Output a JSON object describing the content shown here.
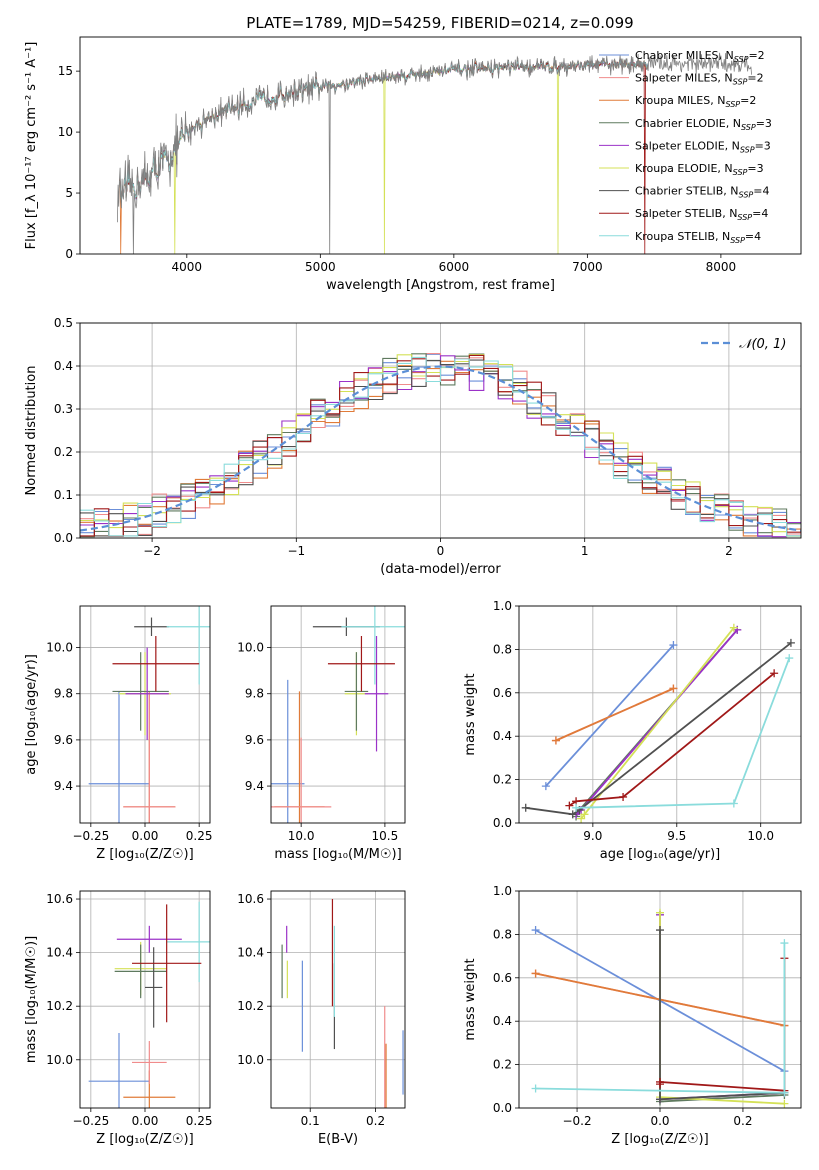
{
  "figure": {
    "title": "PLATE=1789, MJD=54259, FIBERID=0214, z=0.099"
  },
  "colors": {
    "Chabrier MILES": "#6b8fd9",
    "Salpeter MILES": "#f08c8c",
    "Kroupa MILES": "#e07b39",
    "Chabrier ELODIE": "#5f7a5f",
    "Salpeter ELODIE": "#9b32c8",
    "Kroupa ELODIE": "#d4e157",
    "Chabrier STELIB": "#505050",
    "Salpeter STELIB": "#a01818",
    "Kroupa STELIB": "#8adcdc",
    "gaussian": "#5b8fd6",
    "data": "#808080"
  },
  "chart_data": [
    {
      "id": "spectrum",
      "type": "line",
      "xlabel": "wavelength [Angstrom, rest frame]",
      "ylabel": "Flux [f_λ 10⁻¹⁷ erg cm⁻² s⁻¹ A⁻¹]",
      "xlim": [
        3200,
        8600
      ],
      "ylim": [
        0,
        17.8
      ],
      "xticks": [
        4000,
        5000,
        6000,
        7000,
        8000
      ],
      "yticks": [
        0,
        5,
        10,
        15
      ],
      "legend_position": "upper-right",
      "legend": [
        {
          "name": "Chabrier MILES, N_SSP=2",
          "label": "Chabrier MILES",
          "sub": "SSP",
          "n": "=2"
        },
        {
          "name": "Salpeter MILES, N_SSP=2",
          "label": "Salpeter MILES",
          "sub": "SSP",
          "n": "=2"
        },
        {
          "name": "Kroupa MILES, N_SSP=2",
          "label": "Kroupa MILES",
          "sub": "SSP",
          "n": "=2"
        },
        {
          "name": "Chabrier ELODIE, N_SSP=3",
          "label": "Chabrier ELODIE",
          "sub": "SSP",
          "n": "=3"
        },
        {
          "name": "Salpeter ELODIE, N_SSP=3",
          "label": "Salpeter ELODIE",
          "sub": "SSP",
          "n": "=3"
        },
        {
          "name": "Kroupa ELODIE, N_SSP=3",
          "label": "Kroupa ELODIE",
          "sub": "SSP",
          "n": "=3"
        },
        {
          "name": "Chabrier STELIB, N_SSP=4",
          "label": "Chabrier STELIB",
          "sub": "SSP",
          "n": "=4"
        },
        {
          "name": "Salpeter STELIB, N_SSP=4",
          "label": "Salpeter STELIB",
          "sub": "SSP",
          "n": "=4"
        },
        {
          "name": "Kroupa STELIB, N_SSP=4",
          "label": "Kroupa STELIB",
          "sub": "SSP",
          "n": "=4"
        }
      ],
      "continuum": {
        "x": [
          3480,
          3600,
          3700,
          3800,
          3900,
          4000,
          4100,
          4200,
          4400,
          4600,
          4800,
          5000,
          5200,
          5400,
          5600,
          5800,
          6000,
          6200,
          6400,
          6600,
          6800,
          7000,
          7200,
          7400,
          7600,
          7800,
          8000,
          8200
        ],
        "y": [
          4.8,
          5.5,
          6.2,
          7.2,
          8.3,
          10.0,
          10.8,
          11.3,
          12.2,
          12.8,
          13.3,
          13.7,
          14.0,
          14.4,
          14.6,
          14.9,
          15.1,
          15.2,
          15.3,
          15.35,
          15.4,
          15.5,
          15.55,
          15.6,
          15.6,
          15.6,
          15.6,
          15.6
        ]
      },
      "model_x_range": [
        3500,
        7450
      ],
      "data_x_range": [
        3480,
        8230
      ],
      "drops": [
        {
          "x": 5070,
          "y": 0,
          "series": "data"
        },
        {
          "x": 3600,
          "y": 0,
          "series": "data"
        },
        {
          "x": 3910,
          "y": 0,
          "series": "Kroupa ELODIE"
        },
        {
          "x": 5480,
          "y": 0,
          "series": "Kroupa ELODIE"
        },
        {
          "x": 6780,
          "y": 0,
          "series": "Kroupa ELODIE"
        },
        {
          "x": 3505,
          "y": 0,
          "series": "Kroupa MILES"
        },
        {
          "x": 7430,
          "y": 0,
          "series": "Salpeter STELIB"
        }
      ]
    },
    {
      "id": "residual-histogram",
      "type": "step",
      "xlabel": "(data-model)/error",
      "ylabel": "Normed distribution",
      "xlim": [
        -2.5,
        2.5
      ],
      "ylim": [
        0,
        0.5
      ],
      "xticks": [
        -2,
        -1,
        0,
        1,
        2
      ],
      "yticks": [
        0.0,
        0.1,
        0.2,
        0.3,
        0.4,
        0.5
      ],
      "bin_width": 0.1,
      "bins_start": -2.5,
      "legend": [
        {
          "name": "N(0,1)",
          "text": "𝒩(0, 1)"
        }
      ],
      "legend_position": "upper-right",
      "gaussian": {
        "mean": 0,
        "sigma": 1
      }
    },
    {
      "id": "age-vs-Z",
      "type": "errorbar",
      "xlabel": "Z [log₁₀(Z/Z☉)]",
      "ylabel": "age  [log₁₀(age/yr)]",
      "xlim": [
        -0.3,
        0.3
      ],
      "ylim": [
        9.24,
        10.18
      ],
      "xticks": [
        -0.25,
        0.0,
        0.25
      ],
      "xticklabels": [
        "−0.25",
        "0.00",
        "0.25"
      ],
      "yticks": [
        9.4,
        9.6,
        9.8,
        10.0
      ],
      "points": [
        {
          "series": "Chabrier MILES",
          "x": -0.12,
          "y": 9.41,
          "xerr": 0.14,
          "yerr": 0.4
        },
        {
          "series": "Kroupa MILES",
          "x": 0.02,
          "y": 9.31,
          "xerr": 0.12,
          "yerr": 0.5
        },
        {
          "series": "Salpeter MILES",
          "x": 0.02,
          "y": 9.31,
          "xerr": 0.12,
          "yerr": 0.5
        },
        {
          "series": "Kroupa ELODIE",
          "x": 0.0,
          "y": 9.8,
          "xerr": 0.12,
          "yerr": 0.18
        },
        {
          "series": "Chabrier ELODIE",
          "x": -0.02,
          "y": 9.81,
          "xerr": 0.13,
          "yerr": 0.17
        },
        {
          "series": "Salpeter ELODIE",
          "x": 0.01,
          "y": 9.8,
          "xerr": 0.1,
          "yerr": 0.2
        },
        {
          "series": "Chabrier STELIB",
          "x": 0.03,
          "y": 10.09,
          "xerr": 0.08,
          "yerr": 0.04
        },
        {
          "series": "Kroupa STELIB",
          "x": 0.25,
          "y": 10.09,
          "xerr": 0.15,
          "yerr": 0.25
        },
        {
          "series": "Salpeter STELIB",
          "x": 0.05,
          "y": 9.93,
          "xerr": 0.2,
          "yerr": 0.12
        }
      ]
    },
    {
      "id": "age-vs-mass",
      "type": "errorbar",
      "xlabel": "mass [log₁₀(M/M☉)]",
      "ylabel": "",
      "xlim": [
        9.82,
        10.62
      ],
      "ylim": [
        9.24,
        10.18
      ],
      "xticks": [
        10.0,
        10.5
      ],
      "xticklabels": [
        "10.0",
        "10.5"
      ],
      "yticks": [
        9.4,
        9.6,
        9.8,
        10.0
      ],
      "points": [
        {
          "series": "Chabrier MILES",
          "x": 9.92,
          "y": 9.41,
          "xerr": 0.1,
          "yerr": 0.45
        },
        {
          "series": "Kroupa MILES",
          "x": 9.99,
          "y": 9.31,
          "xerr": 0.15,
          "yerr": 0.5
        },
        {
          "series": "Salpeter MILES",
          "x": 10.0,
          "y": 9.31,
          "xerr": 0.18,
          "yerr": 0.3
        },
        {
          "series": "Kroupa ELODIE",
          "x": 10.33,
          "y": 9.8,
          "xerr": 0.07,
          "yerr": 0.18
        },
        {
          "series": "Chabrier ELODIE",
          "x": 10.33,
          "y": 9.81,
          "xerr": 0.07,
          "yerr": 0.17
        },
        {
          "series": "Salpeter ELODIE",
          "x": 10.45,
          "y": 9.8,
          "xerr": 0.07,
          "yerr": 0.25
        },
        {
          "series": "Chabrier STELIB",
          "x": 10.27,
          "y": 10.09,
          "xerr": 0.2,
          "yerr": 0.04
        },
        {
          "series": "Kroupa STELIB",
          "x": 10.44,
          "y": 10.09,
          "xerr": 0.2,
          "yerr": 0.25
        },
        {
          "series": "Salpeter STELIB",
          "x": 10.36,
          "y": 9.93,
          "xerr": 0.2,
          "yerr": 0.12
        }
      ]
    },
    {
      "id": "massweight-vs-age",
      "type": "line",
      "xlabel": "age  [log₁₀(age/yr)]",
      "ylabel": "mass weight",
      "xlim": [
        8.56,
        10.24
      ],
      "ylim": [
        0,
        1
      ],
      "xticks": [
        9.0,
        9.5,
        10.0
      ],
      "xticklabels": [
        "9.0",
        "9.5",
        "10.0"
      ],
      "yticks": [
        0.0,
        0.2,
        0.4,
        0.6,
        0.8,
        1.0
      ],
      "series": [
        {
          "name": "Chabrier MILES",
          "x": [
            8.72,
            9.48
          ],
          "y": [
            0.17,
            0.82
          ]
        },
        {
          "name": "Salpeter MILES",
          "x": [
            8.78,
            9.48
          ],
          "y": [
            0.38,
            0.62
          ]
        },
        {
          "name": "Kroupa MILES",
          "x": [
            8.78,
            9.48
          ],
          "y": [
            0.38,
            0.62
          ]
        },
        {
          "name": "Chabrier ELODIE",
          "x": [
            8.9,
            8.92,
            9.86
          ],
          "y": [
            0.03,
            0.06,
            0.89
          ]
        },
        {
          "name": "Salpeter ELODIE",
          "x": [
            8.9,
            8.93,
            9.86
          ],
          "y": [
            0.04,
            0.06,
            0.89
          ]
        },
        {
          "name": "Kroupa ELODIE",
          "x": [
            8.93,
            8.95,
            9.84
          ],
          "y": [
            0.02,
            0.04,
            0.9
          ]
        },
        {
          "name": "Chabrier STELIB",
          "x": [
            8.6,
            8.88,
            8.92,
            10.18
          ],
          "y": [
            0.07,
            0.04,
            0.06,
            0.83
          ]
        },
        {
          "name": "Salpeter STELIB",
          "x": [
            8.86,
            8.9,
            9.18,
            10.08
          ],
          "y": [
            0.08,
            0.1,
            0.12,
            0.69
          ]
        },
        {
          "name": "Kroupa STELIB",
          "x": [
            8.9,
            9.84,
            10.17
          ],
          "y": [
            0.07,
            0.09,
            0.76
          ]
        }
      ]
    },
    {
      "id": "mass-vs-Z",
      "type": "errorbar",
      "xlabel": "Z [log₁₀(Z/Z☉)]",
      "ylabel": "mass [log₁₀(M/M☉)]",
      "xlim": [
        -0.3,
        0.3
      ],
      "ylim": [
        9.82,
        10.63
      ],
      "xticks": [
        -0.25,
        0.0,
        0.25
      ],
      "xticklabels": [
        "−0.25",
        "0.00",
        "0.25"
      ],
      "yticks": [
        10.0,
        10.2,
        10.4,
        10.6
      ],
      "points": [
        {
          "series": "Chabrier MILES",
          "x": -0.12,
          "y": 9.92,
          "xerr": 0.14,
          "yerr": 0.18
        },
        {
          "series": "Kroupa MILES",
          "x": 0.02,
          "y": 9.86,
          "xerr": 0.12,
          "yerr": 0.1
        },
        {
          "series": "Salpeter MILES",
          "x": 0.02,
          "y": 9.99,
          "xerr": 0.08,
          "yerr": 0.08
        },
        {
          "series": "Kroupa ELODIE",
          "x": -0.02,
          "y": 10.34,
          "xerr": 0.12,
          "yerr": 0.1
        },
        {
          "series": "Chabrier ELODIE",
          "x": -0.02,
          "y": 10.33,
          "xerr": 0.12,
          "yerr": 0.1
        },
        {
          "series": "Salpeter ELODIE",
          "x": 0.02,
          "y": 10.45,
          "xerr": 0.15,
          "yerr": 0.05
        },
        {
          "series": "Chabrier STELIB",
          "x": 0.04,
          "y": 10.27,
          "xerr": 0.04,
          "yerr": 0.15
        },
        {
          "series": "Kroupa STELIB",
          "x": 0.25,
          "y": 10.44,
          "xerr": 0.15,
          "yerr": 0.15
        },
        {
          "series": "Salpeter STELIB",
          "x": 0.1,
          "y": 10.36,
          "xerr": 0.16,
          "yerr": 0.22
        }
      ]
    },
    {
      "id": "mass-vs-ebv",
      "type": "errorbar",
      "xlabel": "E(B-V)",
      "ylabel": "",
      "xlim": [
        0.04,
        0.245
      ],
      "ylim": [
        9.82,
        10.63
      ],
      "xticks": [
        0.1,
        0.2
      ],
      "xticklabels": [
        "0.1",
        "0.2"
      ],
      "yticks": [
        10.0,
        10.2,
        10.4,
        10.6
      ],
      "points": [
        {
          "series": "Chabrier ELODIE",
          "x": 0.057,
          "y": 10.33,
          "xerr": 0,
          "yerr": 0.1
        },
        {
          "series": "Salpeter ELODIE",
          "x": 0.064,
          "y": 10.45,
          "xerr": 0,
          "yerr": 0.05
        },
        {
          "series": "Kroupa ELODIE",
          "x": 0.065,
          "y": 10.3,
          "xerr": 0,
          "yerr": 0.07
        },
        {
          "series": "Chabrier MILES",
          "x": 0.088,
          "y": 10.2,
          "xerr": 0,
          "yerr": 0.17
        },
        {
          "series": "Salpeter STELIB",
          "x": 0.134,
          "y": 10.4,
          "xerr": 0,
          "yerr": 0.2
        },
        {
          "series": "Chabrier STELIB",
          "x": 0.137,
          "y": 10.2,
          "xerr": 0,
          "yerr": 0.16
        },
        {
          "series": "Kroupa STELIB",
          "x": 0.137,
          "y": 10.33,
          "xerr": 0,
          "yerr": 0.17
        },
        {
          "series": "Salpeter MILES",
          "x": 0.214,
          "y": 10.0,
          "xerr": 0,
          "yerr": 0.2
        },
        {
          "series": "Kroupa MILES",
          "x": 0.216,
          "y": 9.93,
          "xerr": 0,
          "yerr": 0.13
        },
        {
          "series": "Chabrier MILES",
          "x": 0.242,
          "y": 9.99,
          "xerr": 0,
          "yerr": 0.12
        }
      ]
    },
    {
      "id": "massweight-vs-Z",
      "type": "line",
      "xlabel": "Z [log₁₀(Z/Z☉)]",
      "ylabel": "mass weight",
      "xlim": [
        -0.34,
        0.34
      ],
      "ylim": [
        0,
        1
      ],
      "xticks": [
        -0.2,
        0.0,
        0.2
      ],
      "xticklabels": [
        "−0.2",
        "0.0",
        "0.2"
      ],
      "yticks": [
        0.0,
        0.2,
        0.4,
        0.6,
        0.8,
        1.0
      ],
      "series": [
        {
          "name": "Chabrier MILES",
          "x": [
            -0.3,
            0.3
          ],
          "y": [
            0.82,
            0.17
          ]
        },
        {
          "name": "Salpeter MILES",
          "x": [
            -0.3,
            0.3
          ],
          "y": [
            0.62,
            0.38
          ]
        },
        {
          "name": "Kroupa MILES",
          "x": [
            -0.3,
            0.3
          ],
          "y": [
            0.62,
            0.38
          ]
        },
        {
          "name": "Chabrier ELODIE",
          "x": [
            0.0,
            0.0,
            0.3
          ],
          "y": [
            0.89,
            0.03,
            0.06
          ]
        },
        {
          "name": "Salpeter ELODIE",
          "x": [
            0.0,
            0.0,
            0.3
          ],
          "y": [
            0.89,
            0.04,
            0.07
          ]
        },
        {
          "name": "Kroupa ELODIE",
          "x": [
            0.0,
            0.0,
            0.3
          ],
          "y": [
            0.9,
            0.05,
            0.02
          ]
        },
        {
          "name": "Chabrier STELIB",
          "x": [
            0.0,
            0.0,
            0.3
          ],
          "y": [
            0.82,
            0.04,
            0.07
          ]
        },
        {
          "name": "Salpeter STELIB",
          "x": [
            0.0,
            0.0,
            0.3,
            0.3
          ],
          "y": [
            0.11,
            0.12,
            0.08,
            0.69
          ]
        },
        {
          "name": "Kroupa STELIB",
          "x": [
            -0.3,
            0.3,
            0.3
          ],
          "y": [
            0.09,
            0.07,
            0.76
          ]
        }
      ]
    }
  ]
}
